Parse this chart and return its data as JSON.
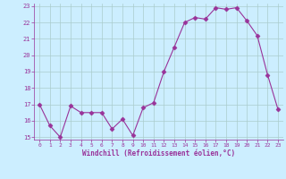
{
  "x": [
    0,
    1,
    2,
    3,
    4,
    5,
    6,
    7,
    8,
    9,
    10,
    11,
    12,
    13,
    14,
    15,
    16,
    17,
    18,
    19,
    20,
    21,
    22,
    23
  ],
  "y": [
    17.0,
    15.7,
    15.0,
    16.9,
    16.5,
    16.5,
    16.5,
    15.5,
    16.1,
    15.1,
    16.8,
    17.1,
    19.0,
    20.5,
    22.0,
    22.3,
    22.2,
    22.9,
    22.8,
    22.9,
    22.1,
    21.2,
    18.8,
    16.7
  ],
  "line_color": "#993399",
  "marker": "D",
  "marker_size": 2.5,
  "bg_color": "#cceeff",
  "grid_color": "#aacccc",
  "xlabel": "Windchill (Refroidissement éolien,°C)",
  "xlabel_color": "#993399",
  "tick_color": "#993399",
  "ylim": [
    15,
    23
  ],
  "xlim": [
    -0.5,
    23.5
  ],
  "yticks": [
    15,
    16,
    17,
    18,
    19,
    20,
    21,
    22,
    23
  ],
  "xticks": [
    0,
    1,
    2,
    3,
    4,
    5,
    6,
    7,
    8,
    9,
    10,
    11,
    12,
    13,
    14,
    15,
    16,
    17,
    18,
    19,
    20,
    21,
    22,
    23
  ]
}
